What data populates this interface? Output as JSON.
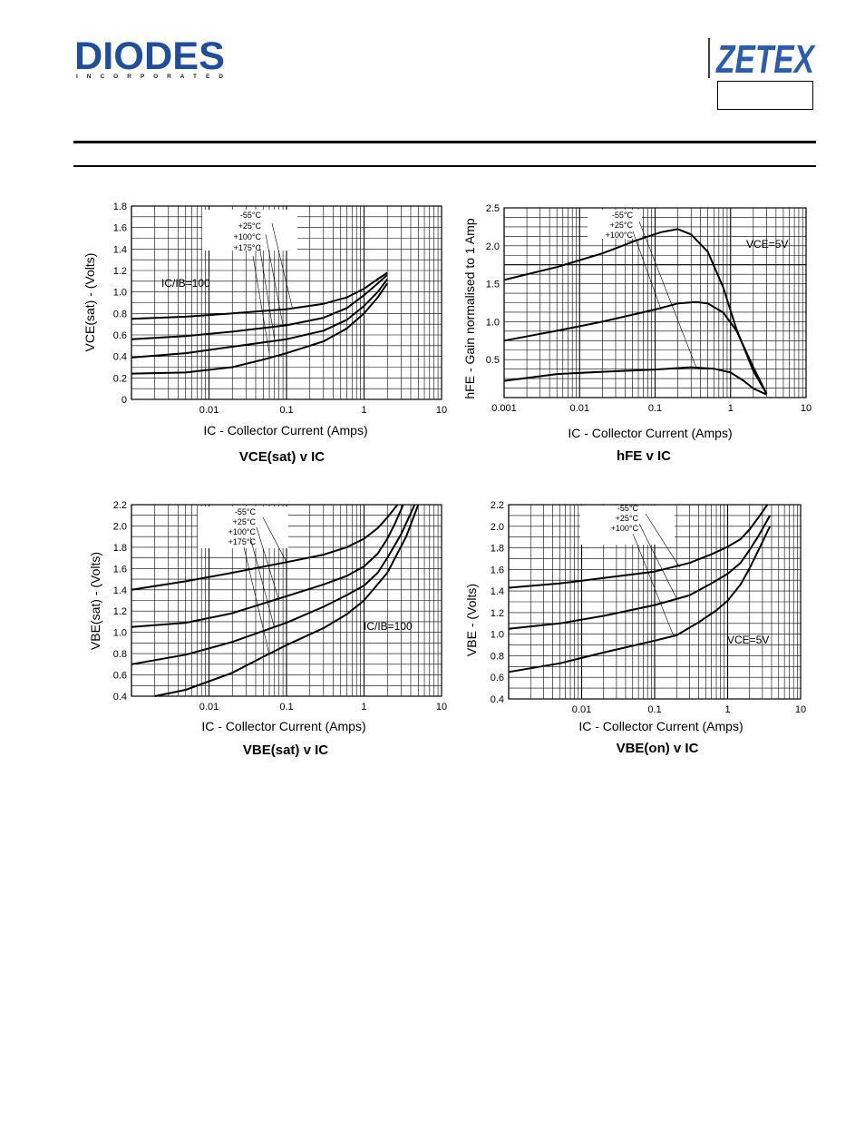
{
  "header": {
    "logo_diodes": "DIODES",
    "logo_diodes_sub": "I N C O R P O R A T E D",
    "logo_zetex": "ZETEX",
    "colors": {
      "diodes_blue": "#1f4e9a",
      "zetex_blue": "#2a5db0"
    }
  },
  "chart_data": [
    {
      "type": "line",
      "title": "VCE(sat) v IC",
      "xlabel": "IC - Collector Current (Amps)",
      "ylabel": "VCE(sat) - (Volts)",
      "xscale": "log",
      "xlim": [
        0.001,
        10
      ],
      "ylim": [
        0,
        1.8
      ],
      "xticks": [
        0.01,
        0.1,
        1,
        10
      ],
      "yticks": [
        0,
        0.2,
        0.4,
        0.6,
        0.8,
        1.0,
        1.2,
        1.4,
        1.6,
        1.8
      ],
      "yfmt": 1,
      "annotation": "IC/IB=100",
      "legend": [
        "-55°C",
        "+25°C",
        "+100°C",
        "+175°C"
      ],
      "series": [
        {
          "name": "-55°C",
          "x": [
            0.001,
            0.005,
            0.02,
            0.1,
            0.3,
            0.6,
            1.0,
            1.5,
            2.0
          ],
          "y": [
            0.75,
            0.77,
            0.8,
            0.84,
            0.89,
            0.95,
            1.03,
            1.12,
            1.18
          ]
        },
        {
          "name": "+25°C",
          "x": [
            0.001,
            0.005,
            0.02,
            0.1,
            0.3,
            0.6,
            1.0,
            1.5,
            2.0
          ],
          "y": [
            0.56,
            0.59,
            0.63,
            0.69,
            0.76,
            0.85,
            0.97,
            1.08,
            1.16
          ]
        },
        {
          "name": "+100°C",
          "x": [
            0.001,
            0.005,
            0.02,
            0.1,
            0.3,
            0.6,
            1.0,
            1.5,
            2.0
          ],
          "y": [
            0.39,
            0.43,
            0.49,
            0.56,
            0.64,
            0.74,
            0.87,
            1.0,
            1.12
          ]
        },
        {
          "name": "+175°C",
          "x": [
            0.001,
            0.005,
            0.02,
            0.05,
            0.1,
            0.3,
            0.6,
            1.0,
            1.5,
            2.0
          ],
          "y": [
            0.24,
            0.25,
            0.3,
            0.37,
            0.43,
            0.54,
            0.66,
            0.8,
            0.95,
            1.08
          ]
        }
      ],
      "leader_targets": [
        [
          0.12,
          0.84
        ],
        [
          0.09,
          0.69
        ],
        [
          0.07,
          0.56
        ],
        [
          0.06,
          0.43
        ]
      ]
    },
    {
      "type": "line",
      "title": "hFE v IC",
      "xlabel": "IC - Collector Current (Amps)",
      "ylabel": "hFE - Gain normalised to 1 Amp",
      "xscale": "log",
      "xlim": [
        0.001,
        10
      ],
      "ylim": [
        0,
        2.5
      ],
      "xticks": [
        0.001,
        0.01,
        0.1,
        1,
        10
      ],
      "xtick_labels": [
        "0.001",
        "0.01",
        "0.1",
        "1",
        "10"
      ],
      "yticks": [
        0.5,
        1.0,
        1.5,
        2.0,
        2.5
      ],
      "yfmt": 1,
      "annotation": "VCE=5V",
      "legend": [
        "-55°C",
        "+25°C",
        "+100°C"
      ],
      "series": [
        {
          "name": "+100°C",
          "x": [
            0.001,
            0.005,
            0.02,
            0.06,
            0.12,
            0.2,
            0.3,
            0.5,
            0.8,
            1.2,
            2.0,
            3.0
          ],
          "y": [
            1.55,
            1.72,
            1.9,
            2.08,
            2.18,
            2.22,
            2.15,
            1.92,
            1.45,
            0.9,
            0.35,
            0.05
          ]
        },
        {
          "name": "+25°C",
          "x": [
            0.001,
            0.005,
            0.02,
            0.1,
            0.2,
            0.35,
            0.5,
            0.8,
            1.2,
            2.0,
            3.0
          ],
          "y": [
            0.75,
            0.88,
            1.0,
            1.16,
            1.24,
            1.26,
            1.24,
            1.12,
            0.88,
            0.4,
            0.05
          ]
        },
        {
          "name": "-55°C",
          "x": [
            0.001,
            0.005,
            0.02,
            0.1,
            0.3,
            0.6,
            1.0,
            1.5,
            2.0,
            3.0
          ],
          "y": [
            0.22,
            0.31,
            0.34,
            0.37,
            0.4,
            0.38,
            0.33,
            0.22,
            0.12,
            0.04
          ]
        }
      ],
      "leader_targets": [
        [
          0.35,
          0.4
        ],
        [
          0.12,
          1.16
        ],
        [
          0.06,
          2.08
        ]
      ],
      "reference_line_y": 1.75
    },
    {
      "type": "line",
      "title": "VBE(sat) v IC",
      "xlabel": "IC - Collector Current (Amps)",
      "ylabel": "VBE(sat) - (Volts)",
      "xscale": "log",
      "xlim": [
        0.001,
        10
      ],
      "ylim": [
        0.4,
        2.2
      ],
      "xticks": [
        0.01,
        0.1,
        1,
        10
      ],
      "yticks": [
        0.4,
        0.6,
        0.8,
        1.0,
        1.2,
        1.4,
        1.6,
        1.8,
        2.0,
        2.2
      ],
      "yfmt": 1,
      "annotation": "IC/IB=100",
      "legend": [
        "-55°C",
        "+25°C",
        "+100°C",
        "+175°C"
      ],
      "series": [
        {
          "name": "-55°C",
          "x": [
            0.001,
            0.005,
            0.02,
            0.1,
            0.3,
            0.6,
            1.0,
            1.5,
            2.0,
            2.7
          ],
          "y": [
            1.4,
            1.48,
            1.56,
            1.66,
            1.73,
            1.8,
            1.88,
            1.98,
            2.08,
            2.2
          ]
        },
        {
          "name": "+25°C",
          "x": [
            0.001,
            0.005,
            0.02,
            0.1,
            0.3,
            0.6,
            1.0,
            1.5,
            2.0,
            2.5,
            3.2
          ],
          "y": [
            1.05,
            1.09,
            1.18,
            1.34,
            1.45,
            1.53,
            1.62,
            1.74,
            1.88,
            2.02,
            2.2
          ]
        },
        {
          "name": "+100°C",
          "x": [
            0.001,
            0.005,
            0.02,
            0.1,
            0.3,
            0.6,
            1.0,
            1.5,
            2.0,
            3.0,
            4.5
          ],
          "y": [
            0.7,
            0.79,
            0.91,
            1.09,
            1.24,
            1.35,
            1.44,
            1.56,
            1.7,
            1.92,
            2.2
          ]
        },
        {
          "name": "+175°C",
          "x": [
            0.002,
            0.005,
            0.02,
            0.05,
            0.1,
            0.3,
            0.6,
            1.0,
            2.0,
            3.5,
            5.0
          ],
          "y": [
            0.4,
            0.46,
            0.62,
            0.77,
            0.88,
            1.04,
            1.17,
            1.3,
            1.56,
            1.9,
            2.2
          ]
        }
      ],
      "leader_targets": [
        [
          0.1,
          1.66
        ],
        [
          0.08,
          1.3
        ],
        [
          0.07,
          1.04
        ],
        [
          0.06,
          0.79
        ]
      ]
    },
    {
      "type": "line",
      "title": "VBE(on) v IC",
      "xlabel": "IC - Collector Current (Amps)",
      "ylabel": "VBE - (Volts)",
      "xscale": "log",
      "xlim": [
        0.001,
        10
      ],
      "ylim": [
        0.4,
        2.2
      ],
      "xticks": [
        0.01,
        0.1,
        1,
        10
      ],
      "yticks": [
        0.4,
        0.6,
        0.8,
        1.0,
        1.2,
        1.4,
        1.6,
        1.8,
        2.0,
        2.2
      ],
      "yfmt": 1,
      "annotation": "VCE=5V",
      "legend": [
        "-55°C",
        "+25°C",
        "+100°C"
      ],
      "series": [
        {
          "name": "-55°C",
          "x": [
            0.001,
            0.005,
            0.02,
            0.1,
            0.3,
            0.6,
            1.0,
            1.5,
            2.0,
            2.7,
            3.5
          ],
          "y": [
            1.43,
            1.47,
            1.52,
            1.58,
            1.66,
            1.74,
            1.81,
            1.88,
            1.97,
            2.09,
            2.2
          ]
        },
        {
          "name": "+25°C",
          "x": [
            0.001,
            0.005,
            0.02,
            0.1,
            0.3,
            0.6,
            1.0,
            1.5,
            2.0,
            2.7,
            3.8
          ],
          "y": [
            1.05,
            1.1,
            1.17,
            1.27,
            1.36,
            1.47,
            1.56,
            1.66,
            1.78,
            1.92,
            2.1
          ]
        },
        {
          "name": "+100°C",
          "x": [
            0.001,
            0.005,
            0.02,
            0.1,
            0.2,
            0.4,
            0.7,
            1.0,
            1.5,
            2.0,
            2.7,
            3.8
          ],
          "y": [
            0.65,
            0.73,
            0.83,
            0.94,
            0.99,
            1.11,
            1.22,
            1.31,
            1.46,
            1.61,
            1.79,
            2.0
          ]
        }
      ],
      "leader_targets": [
        [
          0.22,
          1.62
        ],
        [
          0.2,
          1.33
        ],
        [
          0.18,
          0.99
        ]
      ]
    }
  ]
}
